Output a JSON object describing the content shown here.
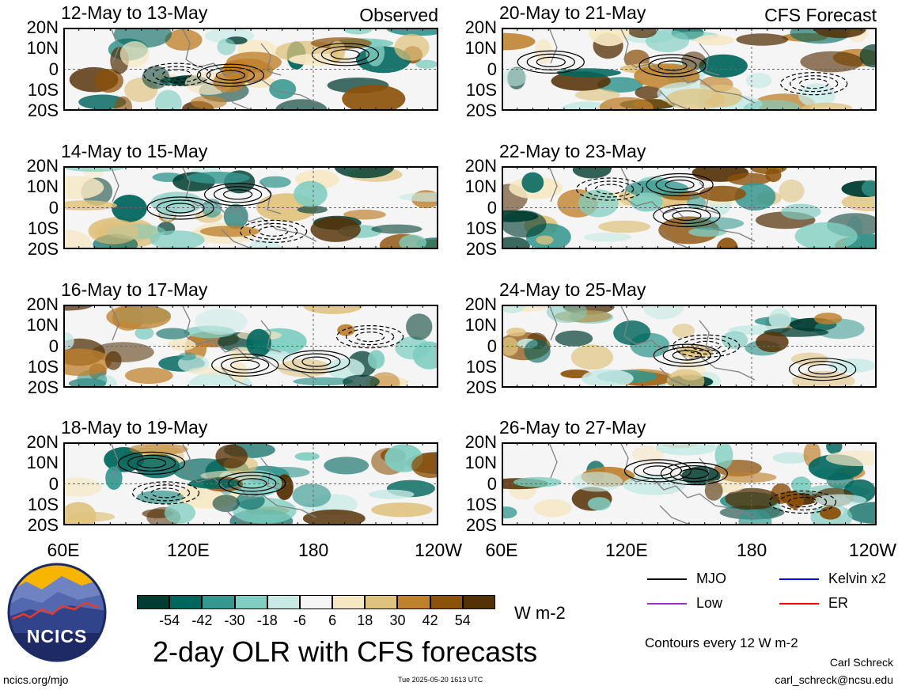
{
  "panels": [
    {
      "title": "12-May to 13-May",
      "tag": "Observed"
    },
    {
      "title": "20-May to 21-May",
      "tag": "CFS Forecast"
    },
    {
      "title": "14-May to 15-May",
      "tag": ""
    },
    {
      "title": "22-May to 23-May",
      "tag": ""
    },
    {
      "title": "16-May to 17-May",
      "tag": ""
    },
    {
      "title": "24-May to 25-May",
      "tag": ""
    },
    {
      "title": "18-May to 19-May",
      "tag": ""
    },
    {
      "title": "26-May to 27-May",
      "tag": ""
    }
  ],
  "lat_labels": [
    "20N",
    "10N",
    "0",
    "10S",
    "20S"
  ],
  "lon_labels": [
    "60E",
    "120E",
    "180",
    "120W"
  ],
  "colorbar": {
    "colors": [
      "#003c30",
      "#01665e",
      "#35978f",
      "#80cdc1",
      "#c7eae5",
      "#f5f5f5",
      "#f6e8c3",
      "#dfc27d",
      "#bf812d",
      "#8c510a",
      "#543005"
    ],
    "labels": [
      "-54",
      "-42",
      "-30",
      "-18",
      "-6",
      "6",
      "18",
      "30",
      "42",
      "54"
    ],
    "units": "W m-2"
  },
  "legend": {
    "items": [
      {
        "label": "MJO",
        "color": "#000000"
      },
      {
        "label": "Kelvin x2",
        "color": "#0000ff"
      },
      {
        "label": "Low",
        "color": "#9933cc"
      },
      {
        "label": "ER",
        "color": "#ff0000"
      }
    ],
    "contour_note": "Contours every 12 W m-2"
  },
  "main_title": "2-day OLR with CFS forecasts",
  "logo_text": "NCICS",
  "footer": {
    "left": "ncics.org/mjo",
    "center": "Tue 2025-05-20 1613 UTC",
    "author": "Carl Schreck",
    "email": "carl_schreck@ncsu.edu"
  }
}
